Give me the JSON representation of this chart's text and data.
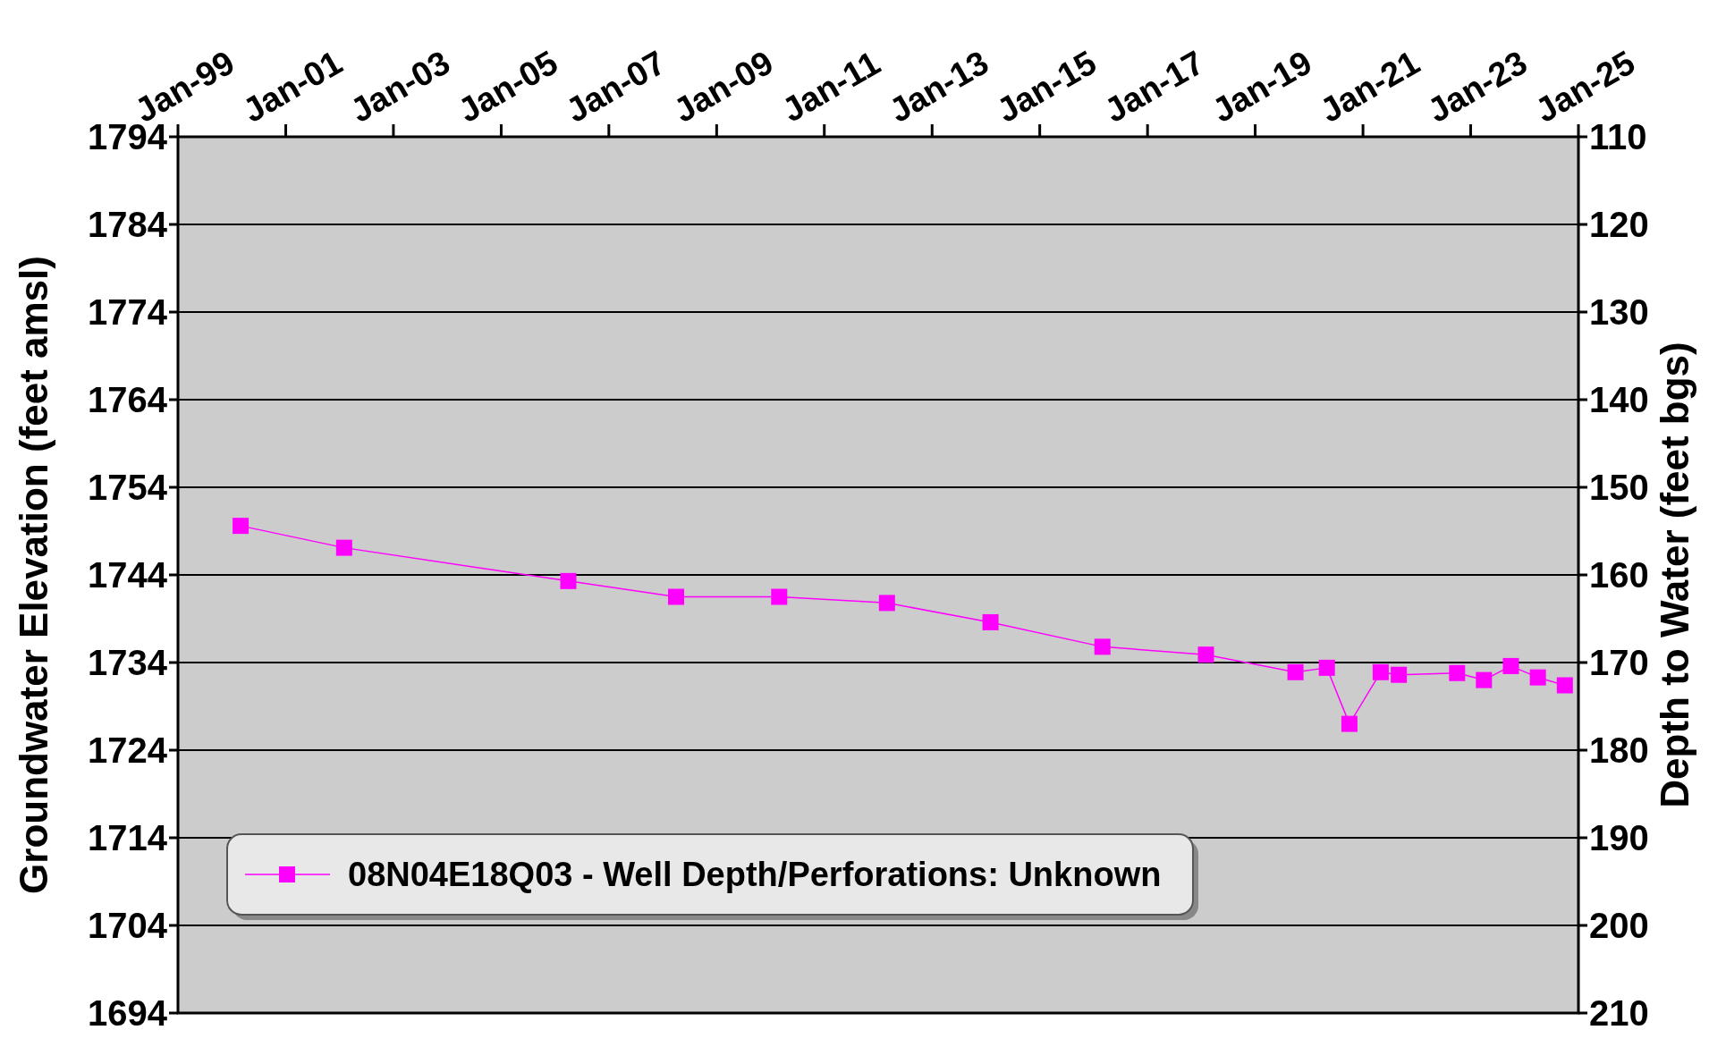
{
  "chart_data": {
    "type": "line",
    "xlabel": null,
    "ylabel": "Groundwater Elevation (feet amsl)",
    "y2label": "Depth to Water (feet bgs)",
    "x": [
      "2000-03",
      "2002-02",
      "2006-04",
      "2008-04",
      "2010-03",
      "2012-03",
      "2014-02",
      "2016-03",
      "2018-02",
      "2019-10",
      "2020-05",
      "2020-10",
      "2021-05",
      "2021-09",
      "2022-10",
      "2023-04",
      "2023-10",
      "2024-04",
      "2024-10"
    ],
    "series": [
      {
        "name": "08N04E18Q03 - Well Depth/Perforations: Unknown",
        "color": "#ff00ff",
        "values": [
          1749.6,
          1747.1,
          1743.3,
          1741.5,
          1741.5,
          1740.8,
          1738.6,
          1735.8,
          1734.9,
          1732.9,
          1733.4,
          1727.0,
          1732.9,
          1732.6,
          1732.8,
          1732.0,
          1733.6,
          1732.3,
          1731.4
        ]
      }
    ],
    "xlim": [
      "1999-01",
      "2025-01"
    ],
    "xticks": [
      {
        "value": "1999-01",
        "label": "Jan-99"
      },
      {
        "value": "2001-01",
        "label": "Jan-01"
      },
      {
        "value": "2003-01",
        "label": "Jan-03"
      },
      {
        "value": "2005-01",
        "label": "Jan-05"
      },
      {
        "value": "2007-01",
        "label": "Jan-07"
      },
      {
        "value": "2009-01",
        "label": "Jan-09"
      },
      {
        "value": "2011-01",
        "label": "Jan-11"
      },
      {
        "value": "2013-01",
        "label": "Jan-13"
      },
      {
        "value": "2015-01",
        "label": "Jan-15"
      },
      {
        "value": "2017-01",
        "label": "Jan-17"
      },
      {
        "value": "2019-01",
        "label": "Jan-19"
      },
      {
        "value": "2021-01",
        "label": "Jan-21"
      },
      {
        "value": "2023-01",
        "label": "Jan-23"
      },
      {
        "value": "2025-01",
        "label": "Jan-25"
      }
    ],
    "ylim": [
      1694,
      1794
    ],
    "yticks": [
      1694,
      1704,
      1714,
      1724,
      1734,
      1744,
      1754,
      1764,
      1774,
      1784,
      1794
    ],
    "y2lim": [
      210,
      110
    ],
    "y2ticks": [
      210,
      200,
      190,
      180,
      170,
      160,
      150,
      140,
      130,
      120,
      110
    ],
    "grid": "y",
    "legend": "bottom left",
    "marker": "square",
    "line_style": "solid"
  }
}
